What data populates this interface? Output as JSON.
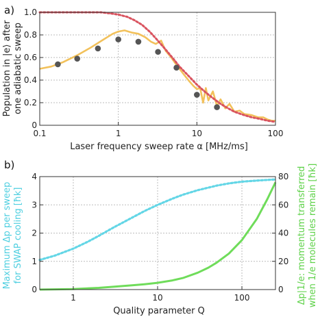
{
  "chart_data": [
    {
      "panel_label": "a)",
      "type": "line",
      "xscale": "log",
      "xlim": [
        0.1,
        100
      ],
      "ylim": [
        0,
        1
      ],
      "grid": true,
      "xlabel": "Laser frequency sweep rate α [MHz/ms]",
      "ylabel_lines": [
        "Population in |e⟩ after",
        "one adiabatic sweep"
      ],
      "xticks": [
        0.1,
        1,
        10,
        100
      ],
      "xtick_labels": [
        "0.1",
        "1",
        "10",
        "100"
      ],
      "yticks": [
        0,
        0.2,
        0.4,
        0.6,
        0.8,
        1.0
      ],
      "ytick_labels": [
        "0",
        "0.2",
        "0.4",
        "0.6",
        "0.8",
        "1.0"
      ],
      "colors": {
        "simulation": "#f2c15b",
        "theory": "#d9535f",
        "points": "#555555"
      },
      "series": [
        {
          "style": "solid",
          "x": [
            0.1,
            0.14,
            0.2,
            0.3,
            0.45,
            0.65,
            0.85,
            1.0,
            1.2,
            1.5,
            1.8,
            2.2,
            2.6,
            3.0,
            3.5,
            4.0,
            4.6,
            5.3,
            6.0,
            7.0,
            8.0,
            9.0,
            10,
            11,
            12,
            13,
            14,
            16,
            18,
            20,
            23,
            26,
            30,
            35,
            40,
            50,
            60,
            70,
            80,
            90,
            100
          ],
          "y": [
            0.5,
            0.52,
            0.56,
            0.62,
            0.69,
            0.76,
            0.81,
            0.83,
            0.84,
            0.82,
            0.81,
            0.78,
            0.74,
            0.72,
            0.75,
            0.66,
            0.61,
            0.55,
            0.5,
            0.44,
            0.39,
            0.35,
            0.32,
            0.33,
            0.2,
            0.33,
            0.22,
            0.3,
            0.17,
            0.23,
            0.15,
            0.19,
            0.12,
            0.13,
            0.1,
            0.09,
            0.07,
            0.07,
            0.05,
            0.04,
            0.04
          ]
        },
        {
          "style": "dotted",
          "x": [
            0.1,
            0.2,
            0.4,
            0.6,
            0.8,
            1.0,
            1.3,
            1.6,
            2.0,
            2.5,
            3.0,
            4.0,
            5.0,
            6.0,
            8.0,
            10,
            13,
            16,
            20,
            25,
            30,
            40,
            50,
            60,
            70,
            80,
            90,
            100
          ],
          "y": [
            1.0,
            1.0,
            1.0,
            1.0,
            0.99,
            0.98,
            0.96,
            0.93,
            0.89,
            0.83,
            0.77,
            0.67,
            0.59,
            0.52,
            0.43,
            0.36,
            0.29,
            0.24,
            0.19,
            0.15,
            0.12,
            0.09,
            0.07,
            0.06,
            0.05,
            0.04,
            0.035,
            0.03
          ]
        },
        {
          "style": "points",
          "x": [
            0.17,
            0.3,
            0.55,
            1.0,
            1.8,
            3.2,
            5.5,
            10,
            18
          ],
          "y": [
            0.54,
            0.59,
            0.68,
            0.76,
            0.74,
            0.65,
            0.51,
            0.27,
            0.16
          ]
        }
      ]
    },
    {
      "panel_label": "b)",
      "type": "line",
      "xscale": "log",
      "xlim": [
        0.4,
        250
      ],
      "ylim_left": [
        0,
        4
      ],
      "ylim_right": [
        0,
        80
      ],
      "grid": true,
      "xlabel": "Quality parameter Q",
      "ylabel_left_lines": [
        "Maximum  Δp  per sweep",
        "for SWAP cooling  [ħk]"
      ],
      "ylabel_right_lines": [
        "Δp|1/e: momentum transferred",
        "when 1/e molecules remain  [ħk]"
      ],
      "xticks": [
        1,
        10,
        100
      ],
      "xtick_labels": [
        "1",
        "10",
        "100"
      ],
      "yticks_left": [
        0,
        1,
        2,
        3,
        4
      ],
      "ytick_labels_left": [
        "0",
        "1",
        "2",
        "3",
        "4"
      ],
      "yticks_right": [
        0,
        20,
        40,
        60,
        80
      ],
      "ytick_labels_right": [
        "0",
        "20",
        "40",
        "60",
        "80"
      ],
      "colors": {
        "left": "#63d6e6",
        "right": "#6fdc5a"
      },
      "series": [
        {
          "axis": "left",
          "style": "dotted",
          "x": [
            0.4,
            0.6,
            1,
            1.5,
            2,
            3,
            5,
            7,
            10,
            15,
            20,
            30,
            50,
            70,
            100,
            150,
            250
          ],
          "y": [
            1.05,
            1.2,
            1.45,
            1.7,
            1.9,
            2.2,
            2.55,
            2.78,
            3.0,
            3.22,
            3.36,
            3.52,
            3.68,
            3.76,
            3.82,
            3.86,
            3.9
          ]
        },
        {
          "axis": "right",
          "style": "solid",
          "x": [
            0.4,
            1,
            2,
            3,
            5,
            7,
            10,
            15,
            20,
            30,
            40,
            50,
            70,
            100,
            150,
            200,
            250
          ],
          "y": [
            0,
            0.4,
            1.2,
            2.0,
            3.0,
            3.8,
            4.8,
            6.5,
            8.2,
            12,
            15.5,
            19,
            25.5,
            35,
            50,
            64,
            76
          ]
        }
      ]
    }
  ]
}
